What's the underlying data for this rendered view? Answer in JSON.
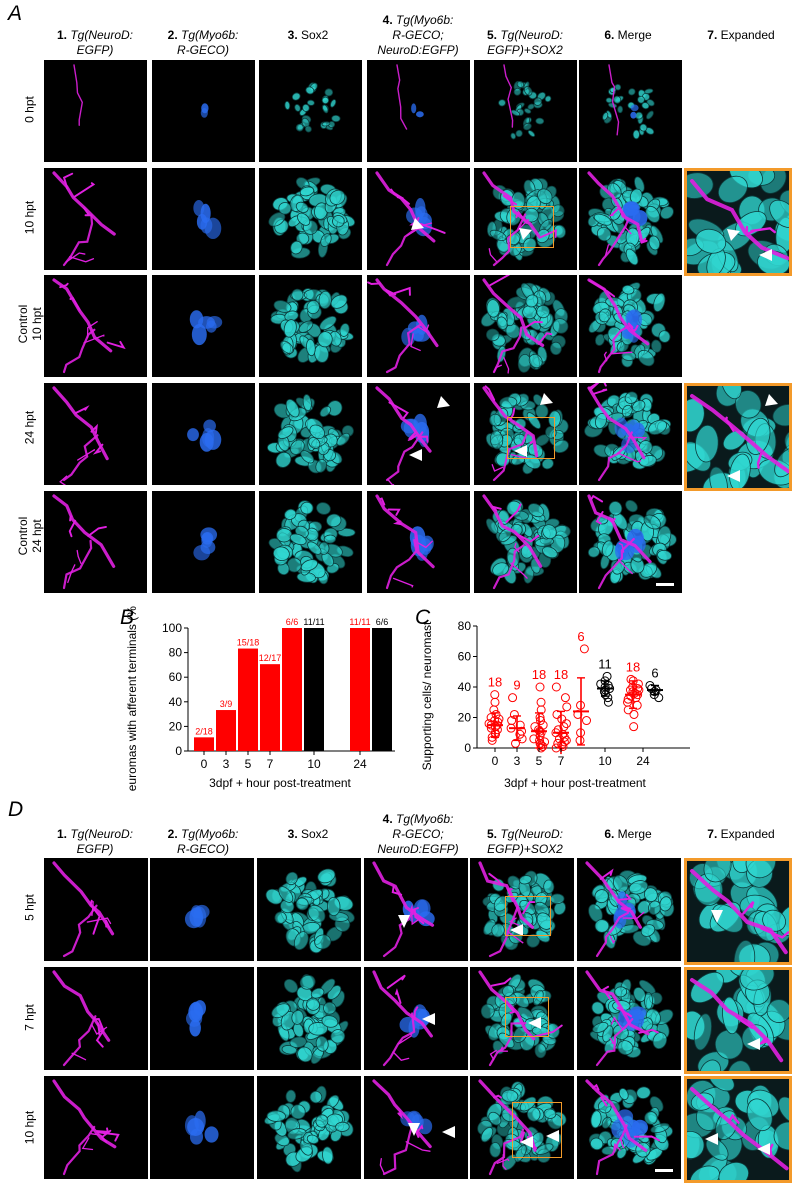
{
  "panels": {
    "A": "A",
    "B": "B",
    "C": "C",
    "D": "D"
  },
  "column_headers": {
    "c1_num": "1.",
    "c1_text": "Tg(NeuroD:",
    "c1_text2": "EGFP)",
    "c2_num": "2.",
    "c2_text": "Tg(Myo6b:",
    "c2_text2": "R-GECO)",
    "c3_num": "3.",
    "c3_text": "Sox2",
    "c4_num": "4.",
    "c4_text": "Tg(Myo6b:",
    "c4_text2": "R-GECO;",
    "c4_text3": "NeuroD:EGFP)",
    "c5_num": "5.",
    "c5_text": "Tg(NeuroD:",
    "c5_text2": "EGFP)+SOX2",
    "c6_num": "6.",
    "c6_text": "Merge",
    "c7_num": "7.",
    "c7_text": "Expanded"
  },
  "rows_A": [
    {
      "line1": "0 hpt",
      "line2": ""
    },
    {
      "line1": "10 hpt",
      "line2": ""
    },
    {
      "line1": "Control",
      "line2": "10 hpt"
    },
    {
      "line1": "24 hpt",
      "line2": ""
    },
    {
      "line1": "Control",
      "line2": "24 hpt"
    }
  ],
  "rows_D": [
    {
      "line1": "5 hpt"
    },
    {
      "line1": "7 hpt"
    },
    {
      "line1": "10 hpt"
    }
  ],
  "colors": {
    "magenta": "#e020e0",
    "blue": "#2a6cf0",
    "cyan": "#30d6d0",
    "orange": "#f39a2a",
    "red": "#ff0000",
    "black": "#000000"
  },
  "chart_data": [
    {
      "type": "bar",
      "panel": "B",
      "ylabel": "Neuromas with afferent terminals (%)",
      "xlabel": "3dpf + hour post-treatment",
      "ylim": [
        0,
        100
      ],
      "yticks": [
        0,
        20,
        40,
        60,
        80,
        100
      ],
      "categories": [
        "0",
        "3",
        "5",
        "7",
        "",
        "10",
        "",
        "24",
        ""
      ],
      "values": [
        11.1,
        33.3,
        83.3,
        70.6,
        100,
        100,
        0,
        100,
        100
      ],
      "bar_labels": [
        "2/18",
        "3/9",
        "15/18",
        "12/17",
        "6/6",
        "11/11",
        "",
        "11/11",
        "6/6"
      ],
      "bar_colors": [
        "red",
        "red",
        "red",
        "red",
        "red",
        "black",
        "none",
        "red",
        "black"
      ],
      "xtick_labels": [
        "0",
        "3",
        "5",
        "7",
        "10",
        "24"
      ]
    },
    {
      "type": "scatter",
      "panel": "C",
      "ylabel": "Supporting cells/ neuromast",
      "xlabel": "3dpf + hour post-treatment",
      "ylim": [
        0,
        80
      ],
      "yticks": [
        0,
        20,
        40,
        60,
        80
      ],
      "xtick_labels": [
        "0",
        "3",
        "5",
        "7",
        "10",
        "24"
      ],
      "groups": [
        {
          "x": "0",
          "n": "18",
          "color": "red",
          "mean": 15,
          "sd": 8,
          "points": [
            5,
            7,
            9,
            10,
            12,
            13,
            14,
            15,
            15,
            16,
            17,
            18,
            19,
            20,
            22,
            25,
            30,
            35
          ]
        },
        {
          "x": "3",
          "n": "9",
          "color": "red",
          "mean": 13,
          "sd": 8,
          "points": [
            3,
            6,
            9,
            11,
            13,
            15,
            18,
            22,
            33
          ]
        },
        {
          "x": "5",
          "n": "18",
          "color": "red",
          "mean": 11,
          "sd": 12,
          "points": [
            0,
            1,
            2,
            3,
            4,
            5,
            6,
            8,
            10,
            11,
            12,
            14,
            15,
            18,
            20,
            25,
            30,
            40
          ]
        },
        {
          "x": "7",
          "n": "18",
          "color": "red",
          "mean": 10,
          "sd": 14,
          "points": [
            0,
            1,
            2,
            3,
            4,
            5,
            6,
            7,
            9,
            10,
            12,
            14,
            16,
            19,
            22,
            27,
            33,
            40
          ]
        },
        {
          "x": "9",
          "n": "6",
          "color": "red",
          "mean": 24,
          "sd": 22,
          "points": [
            5,
            10,
            18,
            22,
            28,
            65
          ]
        },
        {
          "x": "10",
          "n": "11",
          "color": "black",
          "mean": 39,
          "sd": 5,
          "points": [
            30,
            33,
            35,
            37,
            38,
            39,
            40,
            41,
            42,
            44,
            47
          ]
        },
        {
          "x": "24",
          "n": "18",
          "color": "red",
          "mean": 35,
          "sd": 9,
          "points": [
            14,
            22,
            25,
            28,
            30,
            32,
            33,
            34,
            35,
            36,
            37,
            38,
            38,
            39,
            40,
            42,
            44,
            45
          ]
        },
        {
          "x": "24c",
          "n": "6",
          "color": "black",
          "mean": 38,
          "sd": 3,
          "points": [
            33,
            35,
            37,
            38,
            39,
            41
          ]
        }
      ]
    }
  ]
}
